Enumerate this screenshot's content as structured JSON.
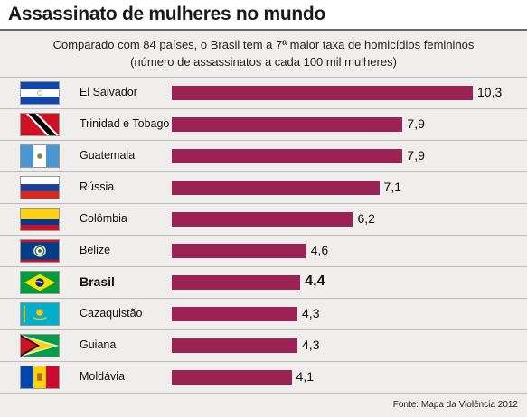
{
  "header": {
    "title": "Assassinato de mulheres no mundo",
    "subtitle_line1": "Comparado com 84 países, o Brasil tem a 7ª maior taxa de homicídios femininos",
    "subtitle_line2": "(número de assassinatos a cada 100 mil mulheres)",
    "source": "Fonte: Mapa da Violência 2012"
  },
  "colors": {
    "bar": "#9b2253",
    "panel": "#efeeec"
  },
  "chart_data": {
    "type": "bar",
    "orientation": "horizontal",
    "title": "Assassinato de mulheres no mundo",
    "subtitle": "Comparado com 84 países, o Brasil tem a 7ª maior taxa de homicídios femininos (número de assassinatos a cada 100 mil mulheres)",
    "categories": [
      "El Salvador",
      "Trinidad e Tobago",
      "Guatemala",
      "Rússia",
      "Colômbia",
      "Belize",
      "Brasil",
      "Cazaquistão",
      "Guiana",
      "Moldávia"
    ],
    "values": [
      10.3,
      7.9,
      7.9,
      7.1,
      6.2,
      4.6,
      4.4,
      4.3,
      4.3,
      4.1
    ],
    "value_labels": [
      "10,3",
      "7,9",
      "7,9",
      "7,1",
      "6,2",
      "4,6",
      "4,4",
      "4,3",
      "4,3",
      "4,1"
    ],
    "highlight": "Brasil",
    "flags": [
      "el-salvador-flag-icon",
      "trinidad-and-tobago-flag-icon",
      "guatemala-flag-icon",
      "russia-flag-icon",
      "colombia-flag-icon",
      "belize-flag-icon",
      "brazil-flag-icon",
      "kazakhstan-flag-icon",
      "guyana-flag-icon",
      "moldova-flag-icon"
    ],
    "xlim": [
      0,
      10.3
    ],
    "grid": false,
    "legend": "none"
  }
}
